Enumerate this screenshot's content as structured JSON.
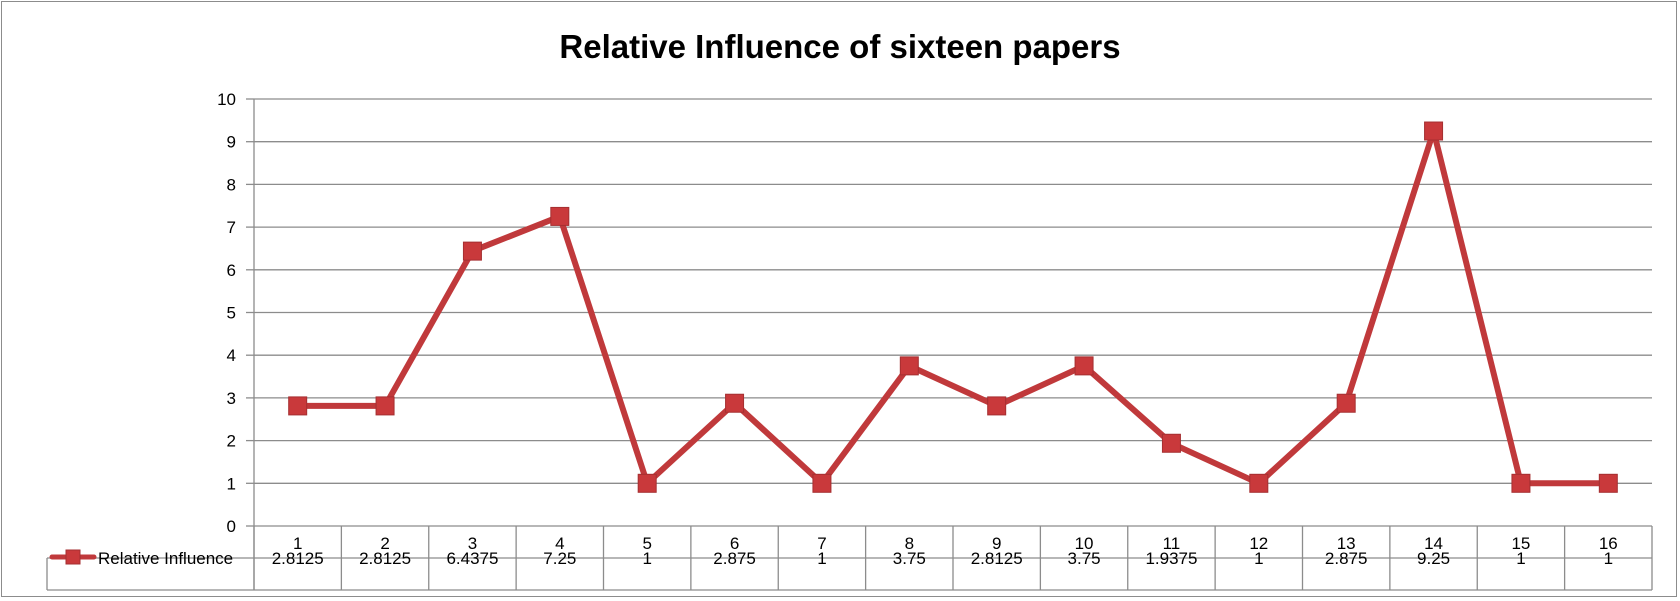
{
  "chart_data": {
    "type": "line",
    "title": "Relative Influence of sixteen papers",
    "xlabel": "",
    "ylabel": "",
    "categories": [
      "1",
      "2",
      "3",
      "4",
      "5",
      "6",
      "7",
      "8",
      "9",
      "10",
      "11",
      "12",
      "13",
      "14",
      "15",
      "16"
    ],
    "series": [
      {
        "name": "Relative Influence",
        "values": [
          2.8125,
          2.8125,
          6.4375,
          7.25,
          1,
          2.875,
          1,
          3.75,
          2.8125,
          3.75,
          1.9375,
          1,
          2.875,
          9.25,
          1,
          1
        ],
        "value_labels": [
          "2.8125",
          "2.8125",
          "6.4375",
          "7.25",
          "1",
          "2.875",
          "1",
          "3.75",
          "2.8125",
          "3.75",
          "1.9375",
          "1",
          "2.875",
          "9.25",
          "1",
          "1"
        ],
        "color": "#c0393b",
        "marker": "square"
      }
    ],
    "ylim": [
      0,
      10
    ],
    "yticks": [
      "0",
      "1",
      "2",
      "3",
      "4",
      "5",
      "6",
      "7",
      "8",
      "9",
      "10"
    ],
    "grid": true,
    "legend": "data-table",
    "data_table": true
  },
  "colors": {
    "series": "#c0393b",
    "marker_fill": "#c9393b",
    "gridline": "#8c8c8c",
    "frame": "#8c8c8c"
  }
}
